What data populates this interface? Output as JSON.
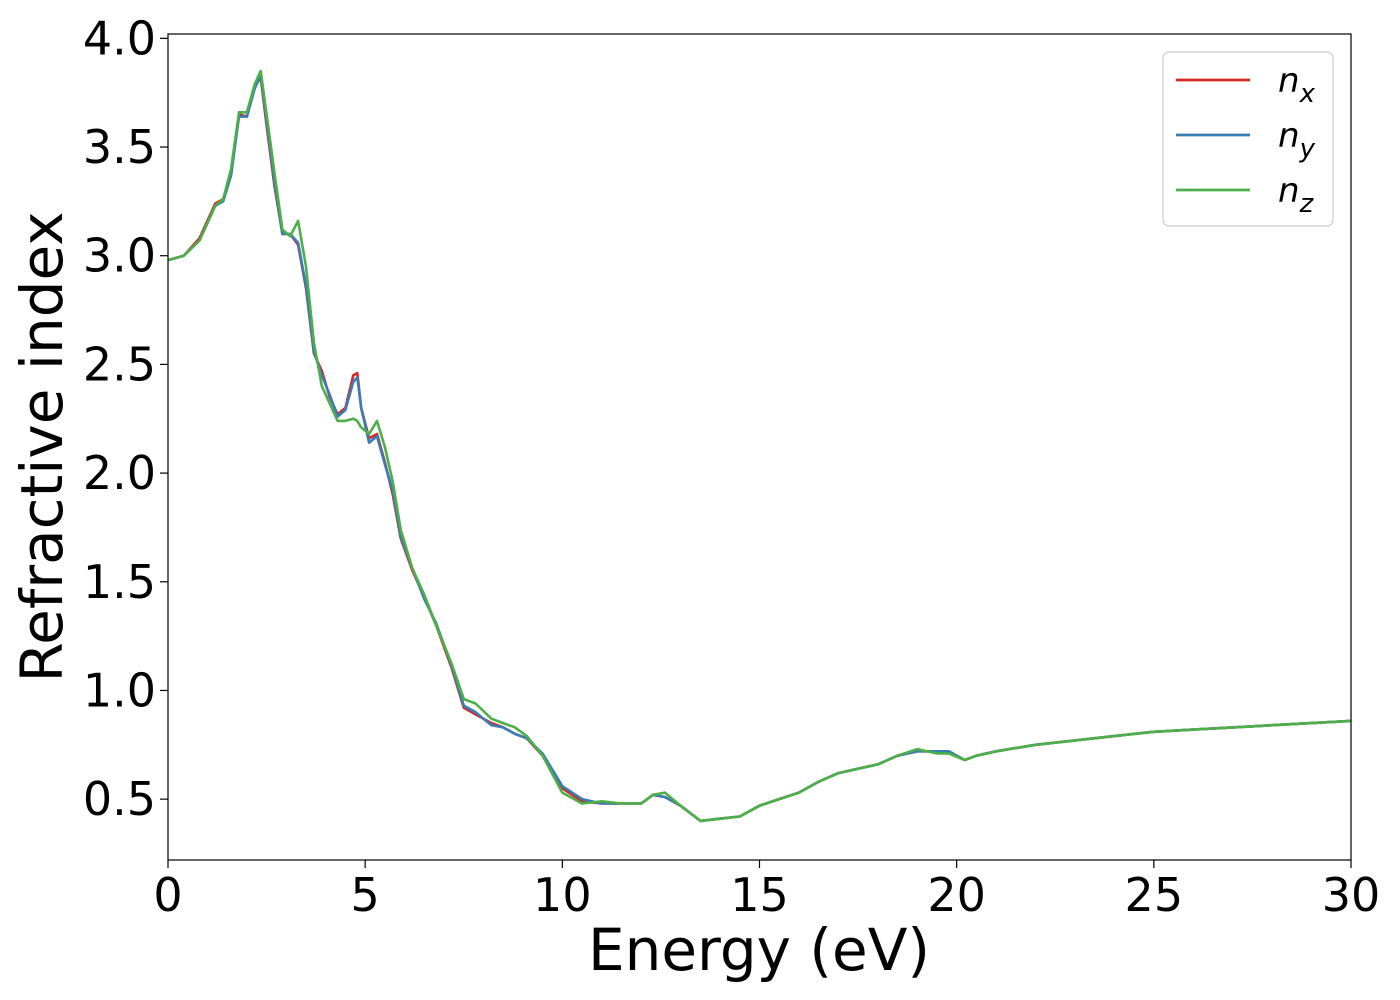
{
  "chart_data": {
    "type": "line",
    "xlabel": "Energy (eV)",
    "ylabel": "Refractive index",
    "xlim": [
      0,
      30
    ],
    "ylim": [
      0.22,
      4.02
    ],
    "xticks": [
      "0",
      "5",
      "10",
      "15",
      "20",
      "25",
      "30"
    ],
    "yticks": [
      "0.5",
      "1.0",
      "1.5",
      "2.0",
      "2.5",
      "3.0",
      "3.5",
      "4.0"
    ],
    "grid": false,
    "legend_position": "top-right",
    "series": [
      {
        "name": "n",
        "subscript": "x",
        "color": "#d62728",
        "x": [
          0,
          0.4,
          0.8,
          1.0,
          1.2,
          1.4,
          1.6,
          1.8,
          2.0,
          2.2,
          2.35,
          2.5,
          2.7,
          2.9,
          3.1,
          3.3,
          3.5,
          3.7,
          3.9,
          4.1,
          4.3,
          4.5,
          4.7,
          4.8,
          4.9,
          5.1,
          5.3,
          5.5,
          5.7,
          5.9,
          6.2,
          6.5,
          6.8,
          7.2,
          7.5,
          7.8,
          8.2,
          8.5,
          8.8,
          9.1,
          9.5,
          10.0,
          10.5,
          11.0,
          11.5,
          12.0,
          12.3,
          12.6,
          13.0,
          13.5,
          14.0,
          14.5,
          15.0,
          15.5,
          16.0,
          16.5,
          17.0,
          17.5,
          18.0,
          18.5,
          19.0,
          19.5,
          19.8,
          20.2,
          20.5,
          21.0,
          22.0,
          23.0,
          24.0,
          25.0,
          26.0,
          27.0,
          28.0,
          29.0,
          30.0
        ],
        "y": [
          2.98,
          3.0,
          3.08,
          3.16,
          3.24,
          3.26,
          3.38,
          3.65,
          3.64,
          3.78,
          3.82,
          3.6,
          3.32,
          3.1,
          3.1,
          3.05,
          2.85,
          2.55,
          2.47,
          2.35,
          2.27,
          2.3,
          2.45,
          2.46,
          2.3,
          2.16,
          2.18,
          2.05,
          1.9,
          1.7,
          1.55,
          1.43,
          1.3,
          1.1,
          0.92,
          0.89,
          0.85,
          0.83,
          0.8,
          0.78,
          0.7,
          0.55,
          0.49,
          0.48,
          0.48,
          0.48,
          0.52,
          0.51,
          0.47,
          0.4,
          0.41,
          0.42,
          0.47,
          0.5,
          0.53,
          0.58,
          0.62,
          0.64,
          0.66,
          0.7,
          0.72,
          0.72,
          0.72,
          0.68,
          0.7,
          0.72,
          0.75,
          0.77,
          0.79,
          0.81,
          0.82,
          0.83,
          0.84,
          0.85,
          0.86
        ]
      },
      {
        "name": "n",
        "subscript": "y",
        "color": "#3a7db5",
        "x": [
          0,
          0.4,
          0.8,
          1.0,
          1.2,
          1.4,
          1.6,
          1.8,
          2.0,
          2.2,
          2.35,
          2.5,
          2.7,
          2.9,
          3.1,
          3.3,
          3.5,
          3.7,
          3.9,
          4.1,
          4.3,
          4.5,
          4.7,
          4.8,
          4.9,
          5.1,
          5.3,
          5.5,
          5.7,
          5.9,
          6.2,
          6.5,
          6.8,
          7.2,
          7.5,
          7.8,
          8.2,
          8.5,
          8.8,
          9.1,
          9.5,
          10.0,
          10.5,
          11.0,
          11.5,
          12.0,
          12.3,
          12.6,
          13.0,
          13.5,
          14.0,
          14.5,
          15.0,
          15.5,
          16.0,
          16.5,
          17.0,
          17.5,
          18.0,
          18.5,
          19.0,
          19.5,
          19.8,
          20.2,
          20.5,
          21.0,
          22.0,
          23.0,
          24.0,
          25.0,
          26.0,
          27.0,
          28.0,
          29.0,
          30.0
        ],
        "y": [
          2.98,
          3.0,
          3.07,
          3.15,
          3.23,
          3.25,
          3.37,
          3.64,
          3.64,
          3.77,
          3.83,
          3.62,
          3.34,
          3.1,
          3.1,
          3.06,
          2.86,
          2.56,
          2.45,
          2.36,
          2.26,
          2.29,
          2.42,
          2.44,
          2.3,
          2.14,
          2.17,
          2.04,
          1.92,
          1.71,
          1.56,
          1.42,
          1.31,
          1.11,
          0.93,
          0.9,
          0.84,
          0.83,
          0.8,
          0.78,
          0.71,
          0.56,
          0.5,
          0.48,
          0.48,
          0.48,
          0.52,
          0.51,
          0.47,
          0.4,
          0.41,
          0.42,
          0.47,
          0.5,
          0.53,
          0.58,
          0.62,
          0.64,
          0.66,
          0.7,
          0.72,
          0.72,
          0.72,
          0.68,
          0.7,
          0.72,
          0.75,
          0.77,
          0.79,
          0.81,
          0.82,
          0.83,
          0.84,
          0.85,
          0.86
        ]
      },
      {
        "name": "n",
        "subscript": "z",
        "color": "#4daf4a",
        "x": [
          0,
          0.4,
          0.8,
          1.0,
          1.2,
          1.4,
          1.6,
          1.8,
          2.0,
          2.2,
          2.35,
          2.5,
          2.7,
          2.9,
          3.1,
          3.3,
          3.5,
          3.7,
          3.9,
          4.1,
          4.3,
          4.5,
          4.7,
          4.8,
          4.9,
          5.1,
          5.3,
          5.5,
          5.7,
          5.9,
          6.2,
          6.5,
          6.8,
          7.2,
          7.5,
          7.8,
          8.2,
          8.5,
          8.8,
          9.1,
          9.5,
          10.0,
          10.5,
          11.0,
          11.5,
          12.0,
          12.3,
          12.6,
          13.0,
          13.5,
          14.0,
          14.5,
          15.0,
          15.5,
          16.0,
          16.5,
          17.0,
          17.5,
          18.0,
          18.5,
          19.0,
          19.5,
          19.8,
          20.2,
          20.5,
          21.0,
          22.0,
          23.0,
          24.0,
          25.0,
          26.0,
          27.0,
          28.0,
          29.0,
          30.0
        ],
        "y": [
          2.98,
          3.0,
          3.07,
          3.15,
          3.23,
          3.26,
          3.4,
          3.66,
          3.66,
          3.79,
          3.85,
          3.65,
          3.38,
          3.12,
          3.09,
          3.16,
          2.95,
          2.6,
          2.4,
          2.32,
          2.24,
          2.24,
          2.25,
          2.24,
          2.21,
          2.18,
          2.24,
          2.12,
          1.96,
          1.74,
          1.56,
          1.44,
          1.3,
          1.12,
          0.96,
          0.94,
          0.87,
          0.85,
          0.83,
          0.79,
          0.7,
          0.53,
          0.48,
          0.49,
          0.48,
          0.48,
          0.52,
          0.53,
          0.47,
          0.4,
          0.41,
          0.42,
          0.47,
          0.5,
          0.53,
          0.58,
          0.62,
          0.64,
          0.66,
          0.7,
          0.73,
          0.71,
          0.71,
          0.68,
          0.7,
          0.72,
          0.75,
          0.77,
          0.79,
          0.81,
          0.82,
          0.83,
          0.84,
          0.85,
          0.86
        ]
      }
    ]
  }
}
